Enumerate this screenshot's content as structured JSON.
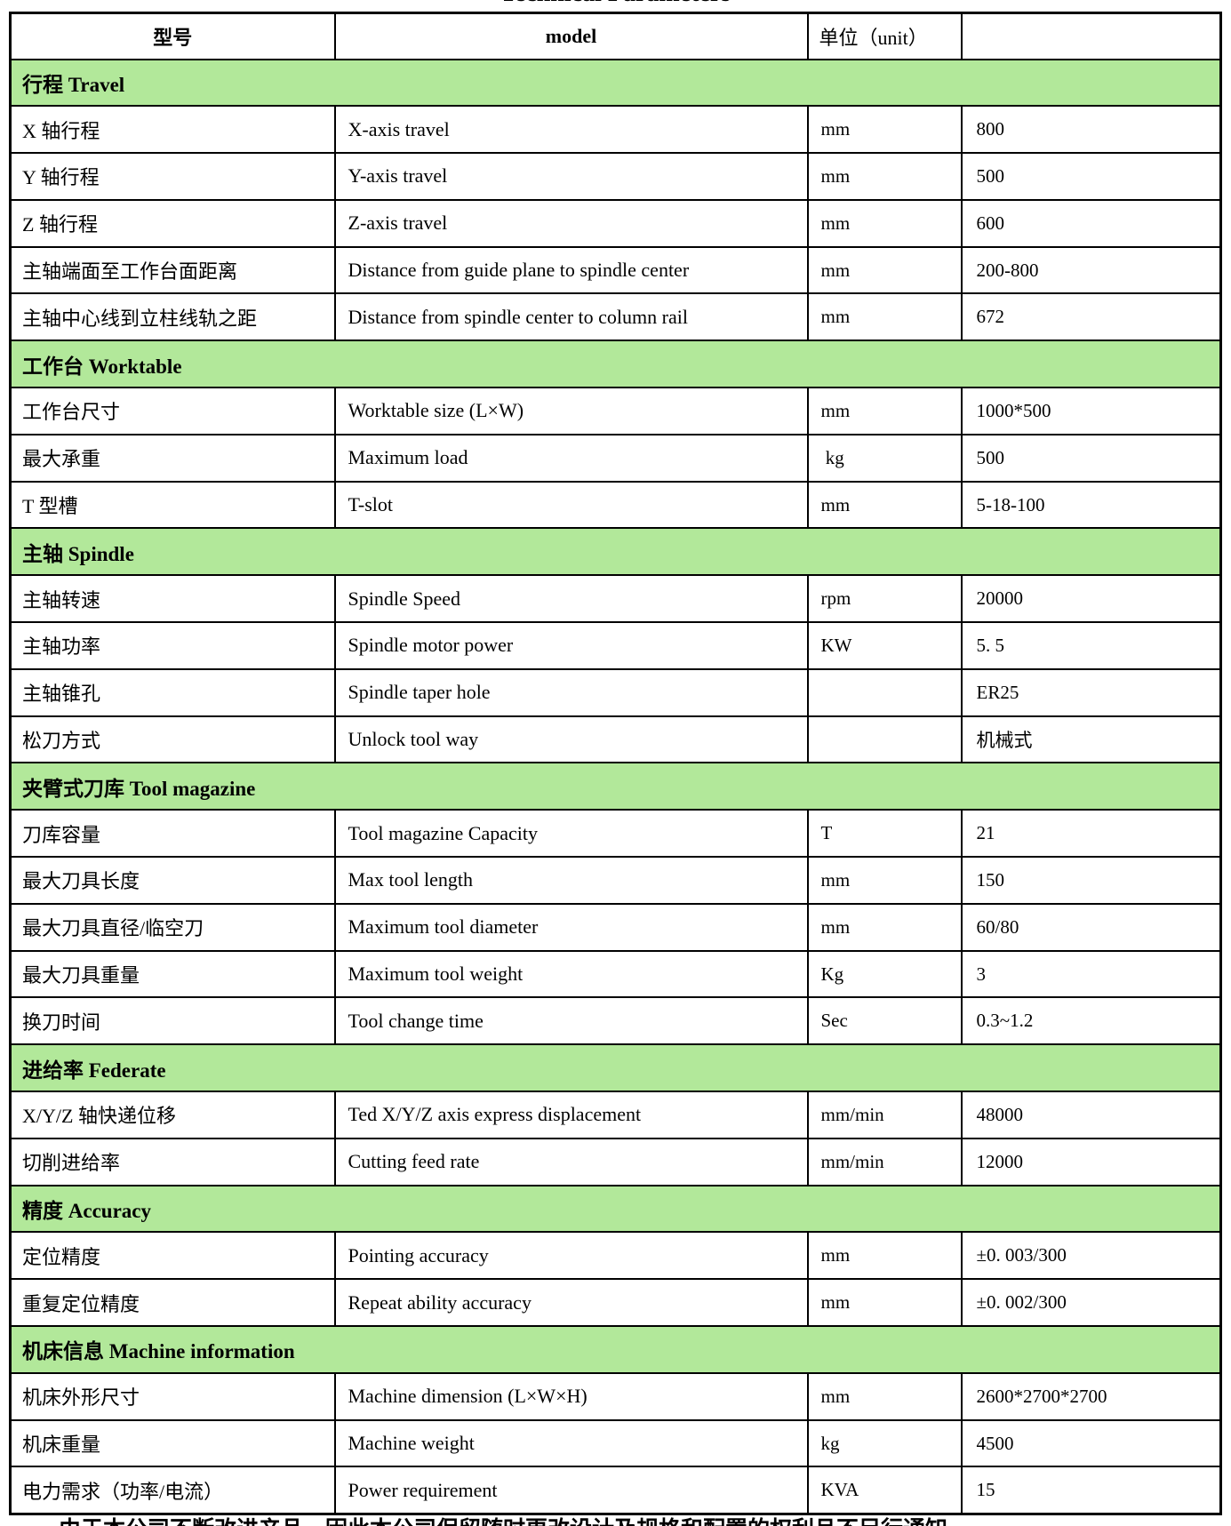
{
  "title": "Technical Parameters",
  "colors": {
    "section_header_bg": "#B2E89A",
    "border": "#000000",
    "background": "#FFFFFF"
  },
  "header": {
    "col1": "型号",
    "col2": "model",
    "col3": "单位（unit）",
    "col4": ""
  },
  "sections": [
    {
      "label": "行程 Travel",
      "rows": [
        {
          "name_cn": "X 轴行程",
          "name_en": "X-axis travel",
          "unit": "mm",
          "value": "800"
        },
        {
          "name_cn": "Y 轴行程",
          "name_en": "Y-axis travel",
          "unit": "mm",
          "value": "500"
        },
        {
          "name_cn": "Z 轴行程",
          "name_en": "Z-axis travel",
          "unit": "mm",
          "value": "600"
        },
        {
          "name_cn": "主轴端面至工作台面距离",
          "name_en": "Distance from guide plane to spindle center",
          "unit": "mm",
          "value": "200-800"
        },
        {
          "name_cn": "主轴中心线到立柱线轨之距",
          "name_en": "Distance from spindle center to column rail",
          "unit": "mm",
          "value": "672"
        }
      ]
    },
    {
      "label": "工作台 Worktable",
      "rows": [
        {
          "name_cn": "工作台尺寸",
          "name_en": "Worktable size (L×W)",
          "unit": "mm",
          "value": "1000*500"
        },
        {
          "name_cn": "最大承重",
          "name_en": "Maximum load",
          "unit": " kg",
          "value": "500"
        },
        {
          "name_cn": "T 型槽",
          "name_en": "T-slot",
          "unit": "mm",
          "value": "5-18-100"
        }
      ]
    },
    {
      "label": "主轴 Spindle",
      "rows": [
        {
          "name_cn": "主轴转速",
          "name_en": "Spindle Speed",
          "unit": "rpm",
          "value": "20000"
        },
        {
          "name_cn": "主轴功率",
          "name_en": "Spindle motor power",
          "unit": "KW",
          "value": "5. 5"
        },
        {
          "name_cn": "主轴锥孔",
          "name_en": "Spindle taper hole",
          "unit": "",
          "value": "ER25"
        },
        {
          "name_cn": "松刀方式",
          "name_en": "Unlock tool way",
          "unit": "",
          "value": "机械式"
        }
      ]
    },
    {
      "label": "夹臂式刀库 Tool magazine",
      "rows": [
        {
          "name_cn": "刀库容量",
          "name_en": "Tool magazine Capacity",
          "unit": "T",
          "value": "21"
        },
        {
          "name_cn": "最大刀具长度",
          "name_en": "Max tool length",
          "unit": "mm",
          "value": "150"
        },
        {
          "name_cn": "最大刀具直径/临空刀",
          "name_en": "Maximum tool diameter",
          "unit": "mm",
          "value": "60/80"
        },
        {
          "name_cn": "最大刀具重量",
          "name_en": "Maximum tool weight",
          "unit": "Kg",
          "value": "3"
        },
        {
          "name_cn": "换刀时间",
          "name_en": "Tool change time",
          "unit": "Sec",
          "value": "0.3~1.2"
        }
      ]
    },
    {
      "label": "进给率 Federate",
      "rows": [
        {
          "name_cn": "X/Y/Z 轴快递位移",
          "name_en": "Ted X/Y/Z axis express displacement",
          "unit": "mm/min",
          "value": "48000"
        },
        {
          "name_cn": "切削进给率",
          "name_en": "Cutting feed rate",
          "unit": "mm/min",
          "value": "12000"
        }
      ]
    },
    {
      "label": "精度 Accuracy",
      "rows": [
        {
          "name_cn": "定位精度",
          "name_en": "Pointing accuracy",
          "unit": "mm",
          "value": "±0. 003/300"
        },
        {
          "name_cn": "重复定位精度",
          "name_en": "Repeat ability accuracy",
          "unit": "mm",
          "value": "±0. 002/300"
        }
      ]
    },
    {
      "label": "机床信息 Machine information",
      "rows": [
        {
          "name_cn": "机床外形尺寸",
          "name_en": "Machine dimension (L×W×H)",
          "unit": "mm",
          "value": "2600*2700*2700"
        },
        {
          "name_cn": "机床重量",
          "name_en": "Machine weight",
          "unit": "kg",
          "value": "4500"
        },
        {
          "name_cn": "电力需求（功率/电流）",
          "name_en": "Power requirement",
          "unit": "KVA",
          "value": "15"
        }
      ]
    }
  ],
  "footer_clipped": "由于本公司不断改进产品，因此本公司保留随时更改设计及规格和配置的权利且不另行通知"
}
